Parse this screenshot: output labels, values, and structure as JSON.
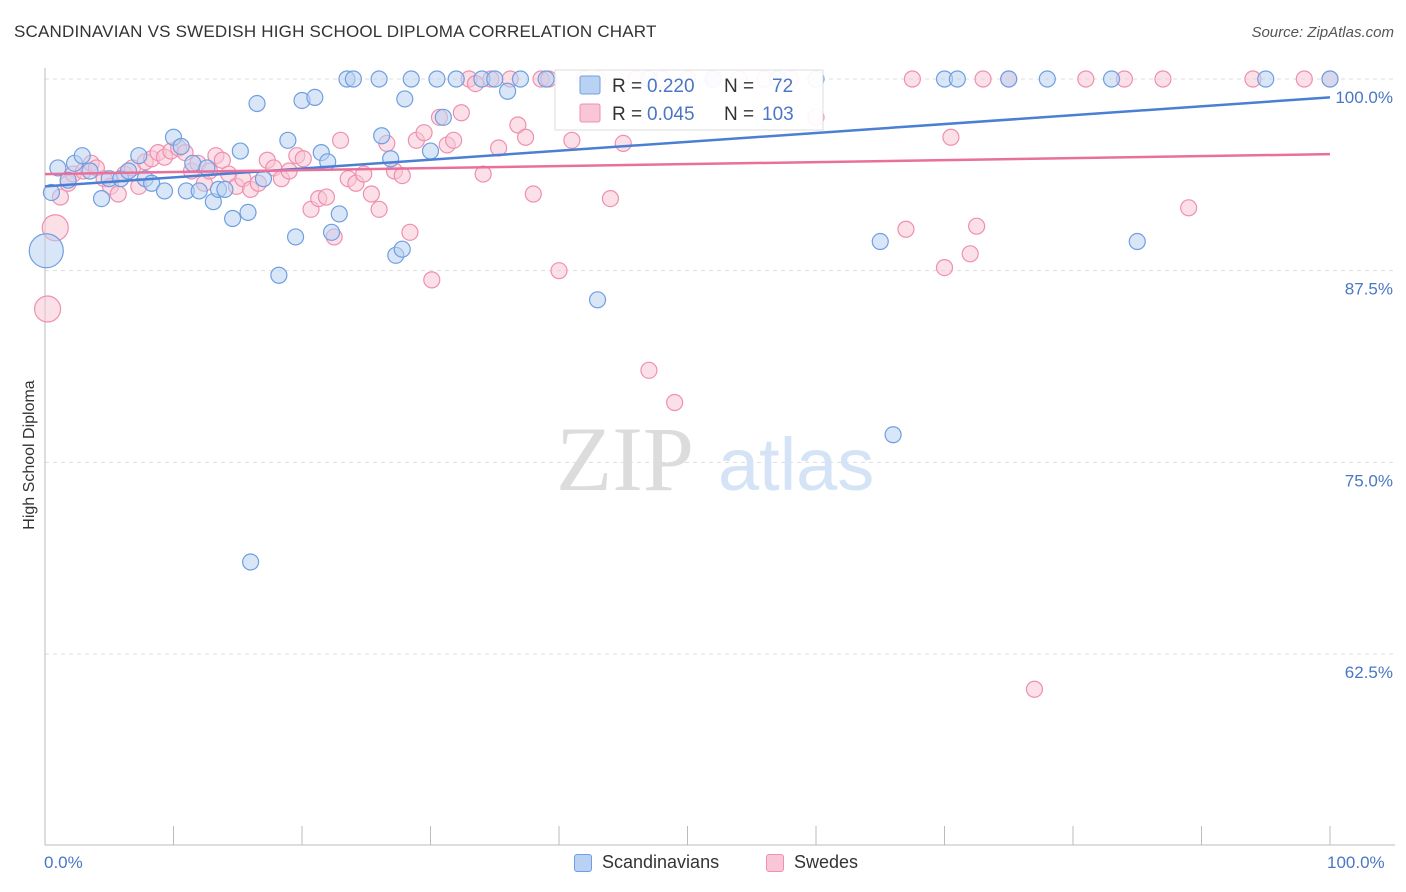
{
  "header": {
    "title": "SCANDINAVIAN VS SWEDISH HIGH SCHOOL DIPLOMA CORRELATION CHART",
    "source": "Source: ZipAtlas.com"
  },
  "watermark": {
    "zip": "ZIP",
    "atlas": "atlas"
  },
  "stats_box": {
    "rows": [
      {
        "r_label": "R =",
        "r_value": "0.220",
        "n_label": "N =",
        "n_value": "72",
        "color": "#6f9fe0"
      },
      {
        "r_label": "R =",
        "r_value": "0.045",
        "n_label": "N =",
        "n_value": "103",
        "color": "#f08fb0"
      }
    ]
  },
  "legend": {
    "items": [
      {
        "label": "Scandinavians",
        "color": "#aac6f0",
        "border": "#6f9fe0"
      },
      {
        "label": "Swedes",
        "color": "#f8c3d3",
        "border": "#f08fb0"
      }
    ]
  },
  "colors": {
    "blue": "#4a7fd4",
    "blue_fill": "#b9d1f2",
    "pink": "#e8709a",
    "pink_fill": "#f8c6d6",
    "tick_text": "#4a77c4"
  },
  "chart_data": {
    "type": "scatter",
    "title": "SCANDINAVIAN VS SWEDISH HIGH SCHOOL DIPLOMA CORRELATION CHART",
    "xlabel": "",
    "ylabel": "High School Diploma",
    "xlim": [
      0,
      100
    ],
    "ylim": [
      50,
      100
    ],
    "x_tick_labels": [
      "0.0%",
      "100.0%"
    ],
    "y_ticks": [
      62.5,
      75.0,
      87.5,
      100.0
    ],
    "y_tick_labels": [
      "62.5%",
      "75.0%",
      "87.5%",
      "100.0%"
    ],
    "grid": true,
    "legend_position": "bottom-center",
    "series": [
      {
        "name": "Scandinavians",
        "r": 0.22,
        "n": 72,
        "trend": {
          "x": [
            0,
            100
          ],
          "y": [
            93.0,
            98.8
          ]
        },
        "points": [
          [
            0.1,
            88.8,
            3
          ],
          [
            0.5,
            92.6,
            1
          ],
          [
            1.0,
            94.2,
            1
          ],
          [
            1.8,
            93.4,
            1
          ],
          [
            2.3,
            94.5,
            1
          ],
          [
            2.9,
            95.0,
            1
          ],
          [
            3.5,
            94.0,
            1
          ],
          [
            4.4,
            92.2,
            1
          ],
          [
            5.0,
            93.5,
            1
          ],
          [
            5.9,
            93.5,
            1
          ],
          [
            6.5,
            94.0,
            1
          ],
          [
            7.3,
            95.0,
            1
          ],
          [
            7.8,
            93.5,
            1
          ],
          [
            8.3,
            93.2,
            1
          ],
          [
            9.3,
            92.7,
            1
          ],
          [
            10.0,
            96.2,
            1
          ],
          [
            10.6,
            95.6,
            1
          ],
          [
            11.0,
            92.7,
            1
          ],
          [
            11.5,
            94.5,
            1
          ],
          [
            12.0,
            92.7,
            1
          ],
          [
            12.6,
            94.2,
            1
          ],
          [
            13.1,
            92.0,
            1
          ],
          [
            13.5,
            92.8,
            1
          ],
          [
            14.0,
            92.8,
            1
          ],
          [
            14.6,
            90.9,
            1
          ],
          [
            15.2,
            95.3,
            1
          ],
          [
            15.8,
            91.3,
            1
          ],
          [
            16.5,
            98.4,
            1
          ],
          [
            17.0,
            93.5,
            1
          ],
          [
            18.2,
            87.2,
            1
          ],
          [
            18.9,
            96.0,
            1
          ],
          [
            19.5,
            89.7,
            1
          ],
          [
            20.0,
            98.6,
            1
          ],
          [
            21.0,
            98.8,
            1
          ],
          [
            21.5,
            95.2,
            1
          ],
          [
            22.0,
            94.6,
            1
          ],
          [
            22.3,
            90.0,
            1
          ],
          [
            22.9,
            91.2,
            1
          ],
          [
            23.5,
            100.0,
            1
          ],
          [
            24.0,
            100.0,
            1
          ],
          [
            26.0,
            100.0,
            1
          ],
          [
            26.2,
            96.3,
            1
          ],
          [
            26.9,
            94.8,
            1
          ],
          [
            27.3,
            88.5,
            1
          ],
          [
            27.8,
            88.9,
            1
          ],
          [
            28.0,
            98.7,
            1
          ],
          [
            28.5,
            100.0,
            1
          ],
          [
            30.0,
            95.3,
            1
          ],
          [
            31.0,
            97.5,
            1
          ],
          [
            32.0,
            100.0,
            1
          ],
          [
            34.0,
            100.0,
            1
          ],
          [
            35.0,
            100.0,
            1
          ],
          [
            37.0,
            100.0,
            1
          ],
          [
            39.0,
            100.0,
            1
          ],
          [
            43.0,
            85.6,
            1
          ],
          [
            52.0,
            100.0,
            1
          ],
          [
            57.0,
            100.0,
            1
          ],
          [
            65.0,
            89.4,
            1
          ],
          [
            66.0,
            76.8,
            1
          ],
          [
            70.0,
            100.0,
            1
          ],
          [
            71.0,
            100.0,
            1
          ],
          [
            75.0,
            100.0,
            1
          ],
          [
            78.0,
            100.0,
            1
          ],
          [
            83.0,
            100.0,
            1
          ],
          [
            85.0,
            89.4,
            1
          ],
          [
            95.0,
            100.0,
            1
          ],
          [
            100.0,
            100.0,
            1
          ],
          [
            36.0,
            99.2,
            1
          ],
          [
            47.0,
            100.0,
            1
          ],
          [
            16.0,
            68.5,
            1
          ],
          [
            60.0,
            100.0,
            1
          ],
          [
            30.5,
            100.0,
            1
          ]
        ]
      },
      {
        "name": "Swedes",
        "r": 0.045,
        "n": 103,
        "trend": {
          "x": [
            0,
            100
          ],
          "y": [
            93.8,
            95.1
          ]
        },
        "points": [
          [
            0.2,
            85.0,
            2
          ],
          [
            0.8,
            90.3,
            2
          ],
          [
            1.2,
            92.3,
            1
          ],
          [
            1.8,
            93.2,
            1
          ],
          [
            2.2,
            93.8,
            1
          ],
          [
            3.0,
            94.0,
            1
          ],
          [
            3.6,
            94.5,
            1
          ],
          [
            4.0,
            94.2,
            1
          ],
          [
            4.6,
            93.5,
            1
          ],
          [
            5.1,
            93.0,
            1
          ],
          [
            5.7,
            92.5,
            1
          ],
          [
            6.2,
            93.8,
            1
          ],
          [
            6.8,
            94.2,
            1
          ],
          [
            7.3,
            93.0,
            1
          ],
          [
            7.8,
            94.6,
            1
          ],
          [
            8.3,
            94.8,
            1
          ],
          [
            8.8,
            95.2,
            1
          ],
          [
            9.3,
            94.9,
            1
          ],
          [
            9.8,
            95.3,
            1
          ],
          [
            10.4,
            95.5,
            1
          ],
          [
            10.9,
            95.2,
            1
          ],
          [
            11.4,
            94.0,
            1
          ],
          [
            11.9,
            94.5,
            1
          ],
          [
            12.4,
            93.2,
            1
          ],
          [
            12.8,
            94.0,
            1
          ],
          [
            13.3,
            95.0,
            1
          ],
          [
            13.8,
            94.7,
            1
          ],
          [
            14.3,
            93.8,
            1
          ],
          [
            14.9,
            93.0,
            1
          ],
          [
            15.4,
            93.5,
            1
          ],
          [
            16.0,
            92.8,
            1
          ],
          [
            16.6,
            93.2,
            1
          ],
          [
            17.3,
            94.7,
            1
          ],
          [
            17.8,
            94.2,
            1
          ],
          [
            18.4,
            93.5,
            1
          ],
          [
            19.0,
            94.0,
            1
          ],
          [
            19.6,
            95.0,
            1
          ],
          [
            20.1,
            94.8,
            1
          ],
          [
            20.7,
            91.5,
            1
          ],
          [
            21.3,
            92.2,
            1
          ],
          [
            21.9,
            92.3,
            1
          ],
          [
            22.5,
            89.7,
            1
          ],
          [
            23.0,
            96.0,
            1
          ],
          [
            23.6,
            93.5,
            1
          ],
          [
            24.2,
            93.2,
            1
          ],
          [
            24.8,
            93.8,
            1
          ],
          [
            25.4,
            92.5,
            1
          ],
          [
            26.0,
            91.5,
            1
          ],
          [
            26.6,
            95.8,
            1
          ],
          [
            27.2,
            94.0,
            1
          ],
          [
            27.8,
            93.7,
            1
          ],
          [
            28.4,
            90.0,
            1
          ],
          [
            28.9,
            96.0,
            1
          ],
          [
            29.5,
            96.5,
            1
          ],
          [
            30.1,
            86.9,
            1
          ],
          [
            30.7,
            97.5,
            1
          ],
          [
            31.3,
            95.7,
            1
          ],
          [
            31.8,
            96.0,
            1
          ],
          [
            32.4,
            97.8,
            1
          ],
          [
            33.0,
            100.0,
            1
          ],
          [
            33.5,
            99.7,
            1
          ],
          [
            34.1,
            93.8,
            1
          ],
          [
            34.7,
            100.0,
            1
          ],
          [
            35.3,
            95.5,
            1
          ],
          [
            36.2,
            100.0,
            1
          ],
          [
            36.8,
            97.0,
            1
          ],
          [
            37.4,
            96.2,
            1
          ],
          [
            38.0,
            92.5,
            1
          ],
          [
            38.6,
            100.0,
            1
          ],
          [
            39.2,
            100.0,
            1
          ],
          [
            40.0,
            87.5,
            1
          ],
          [
            41.0,
            96.0,
            1
          ],
          [
            42.0,
            100.0,
            1
          ],
          [
            43.0,
            100.0,
            1
          ],
          [
            44.0,
            92.2,
            1
          ],
          [
            45.0,
            95.8,
            1
          ],
          [
            46.0,
            100.0,
            1
          ],
          [
            47.0,
            81.0,
            1
          ],
          [
            48.0,
            100.0,
            1
          ],
          [
            49.0,
            78.9,
            1
          ],
          [
            50.0,
            100.0,
            1
          ],
          [
            52.0,
            100.0,
            1
          ],
          [
            54.0,
            100.0,
            1
          ],
          [
            56.0,
            100.0,
            1
          ],
          [
            57.0,
            100.0,
            1
          ],
          [
            58.0,
            100.0,
            1
          ],
          [
            60.0,
            97.5,
            1
          ],
          [
            67.0,
            90.2,
            1
          ],
          [
            67.5,
            100.0,
            1
          ],
          [
            70.0,
            87.7,
            1
          ],
          [
            70.5,
            96.2,
            1
          ],
          [
            72.0,
            88.6,
            1
          ],
          [
            72.5,
            90.4,
            1
          ],
          [
            75.0,
            100.0,
            1
          ],
          [
            81.0,
            100.0,
            1
          ],
          [
            84.0,
            100.0,
            1
          ],
          [
            89.0,
            91.6,
            1
          ],
          [
            94.0,
            100.0,
            1
          ],
          [
            98.0,
            100.0,
            1
          ],
          [
            100.0,
            100.0,
            1
          ],
          [
            73.0,
            100.0,
            1
          ],
          [
            87.0,
            100.0,
            1
          ],
          [
            77.0,
            60.2,
            1
          ]
        ]
      }
    ]
  }
}
